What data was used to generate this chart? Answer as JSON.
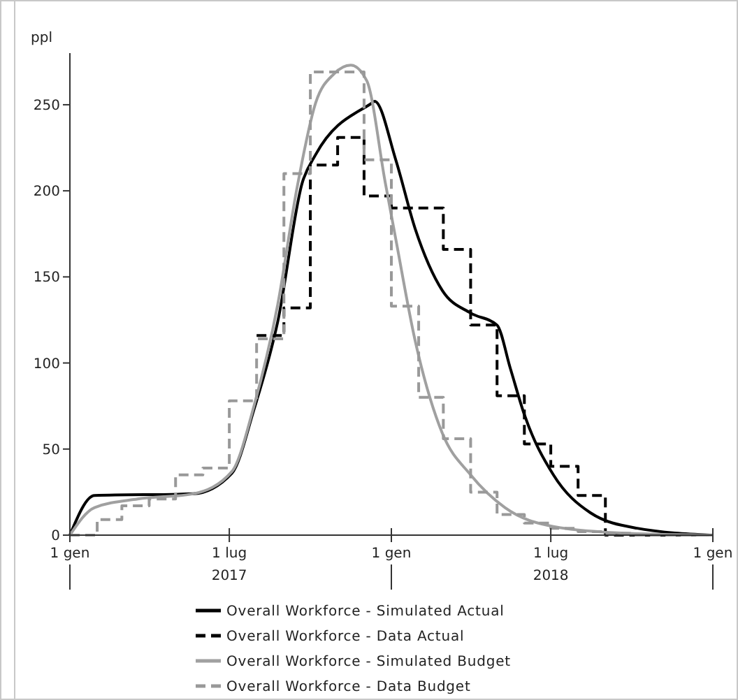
{
  "chart_data": {
    "type": "line",
    "ylabel": "ppl",
    "xlim": [
      "2017-01-01",
      "2019-01-01"
    ],
    "ylim": [
      0,
      280
    ],
    "yticks": [
      0,
      50,
      100,
      150,
      200,
      250
    ],
    "xticks": [
      {
        "value": "2017-01-01",
        "label": "1 gen"
      },
      {
        "value": "2017-07-01",
        "label": "1 lug\n2017"
      },
      {
        "value": "2018-01-01",
        "label": "1 gen"
      },
      {
        "value": "2018-07-01",
        "label": "1 lug\n2018"
      },
      {
        "value": "2019-01-01",
        "label": "1 gen"
      }
    ],
    "legend": "bottom",
    "grid": false,
    "series": [
      {
        "name": "Overall Workforce - Simulated Actual",
        "color": "#000000",
        "line_style": "solid",
        "x": [
          "2017-01-01",
          "2017-01-29",
          "2017-05-21",
          "2017-07-04",
          "2017-07-29",
          "2017-08-25",
          "2017-09-22",
          "2017-10-07",
          "2017-12-10",
          "2017-12-13",
          "2018-01-06",
          "2018-01-28",
          "2018-02-28",
          "2018-04-01",
          "2018-05-01",
          "2018-05-16",
          "2018-06-01",
          "2018-07-04",
          "2018-08-15",
          "2018-10-07",
          "2019-01-01"
        ],
        "values": [
          0,
          23,
          24,
          36,
          73,
          124,
          205,
          221,
          251,
          252,
          218,
          178,
          142,
          129,
          122,
          97,
          70,
          35,
          13,
          4,
          0
        ]
      },
      {
        "name": "Overall Workforce - Data Actual",
        "color": "#000000",
        "line_style": "dashed",
        "type": "step",
        "x": [
          "2017-08-01",
          "2017-09-01",
          "2017-10-01",
          "2017-11-01",
          "2017-12-01",
          "2018-01-01",
          "2018-02-01",
          "2018-03-01",
          "2018-04-01",
          "2018-05-01",
          "2018-06-01",
          "2018-07-01",
          "2018-08-01",
          "2018-09-01",
          "2018-10-01",
          "2018-11-01",
          "2018-12-01",
          "2019-01-01"
        ],
        "values": [
          116,
          132,
          215,
          231,
          197,
          190,
          190,
          166,
          122,
          81,
          53,
          40,
          23,
          0,
          0,
          0,
          0,
          0
        ]
      },
      {
        "name": "Overall Workforce - Simulated Budget",
        "color": "#a0a0a0",
        "line_style": "solid",
        "x": [
          "2017-01-01",
          "2017-01-29",
          "2017-03-19",
          "2017-05-21",
          "2017-07-04",
          "2017-07-29",
          "2017-08-25",
          "2017-09-16",
          "2017-10-07",
          "2017-10-28",
          "2017-11-16",
          "2017-12-04",
          "2017-12-25",
          "2018-01-06",
          "2018-01-28",
          "2018-02-28",
          "2018-04-01",
          "2018-05-10",
          "2018-07-04",
          "2018-09-28",
          "2019-01-01"
        ],
        "values": [
          0,
          16,
          21,
          24,
          37,
          75,
          134,
          202,
          251,
          268,
          273,
          264,
          205,
          172,
          113,
          59,
          35,
          16,
          5,
          1,
          0
        ]
      },
      {
        "name": "Overall Workforce - Data Budget",
        "color": "#999999",
        "line_style": "dashed",
        "type": "step",
        "x": [
          "2017-01-01",
          "2017-02-01",
          "2017-03-01",
          "2017-04-01",
          "2017-05-01",
          "2017-06-01",
          "2017-07-01",
          "2017-08-01",
          "2017-09-01",
          "2017-10-01",
          "2017-11-01",
          "2017-12-01",
          "2018-01-01",
          "2018-02-01",
          "2018-03-01",
          "2018-04-01",
          "2018-05-01",
          "2018-06-01",
          "2018-07-01",
          "2018-08-01",
          "2018-09-01",
          "2018-10-01",
          "2018-11-01",
          "2018-12-01",
          "2019-01-01"
        ],
        "values": [
          0,
          9,
          17,
          21,
          35,
          39,
          78,
          114,
          210,
          269,
          269,
          218,
          133,
          80,
          56,
          25,
          12,
          7,
          4,
          2,
          1,
          0,
          0,
          0,
          0
        ]
      }
    ]
  }
}
